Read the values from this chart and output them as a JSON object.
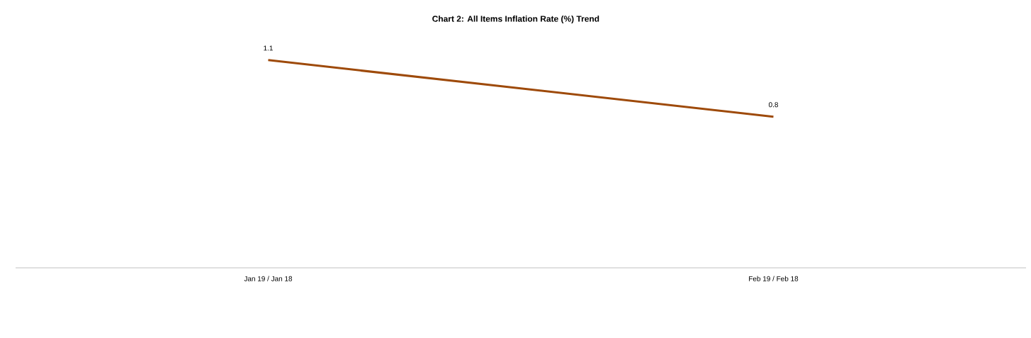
{
  "chart_data": {
    "type": "line",
    "title": "Chart 2: All Items Inflation Rate (%) Trend",
    "categories": [
      "Jan 19 / Jan 18",
      "Feb 19 / Feb 18"
    ],
    "values": [
      1.1,
      0.8
    ],
    "color": "#9e4a0a",
    "data_labels": true,
    "marker": "none",
    "line_style": "solid"
  }
}
